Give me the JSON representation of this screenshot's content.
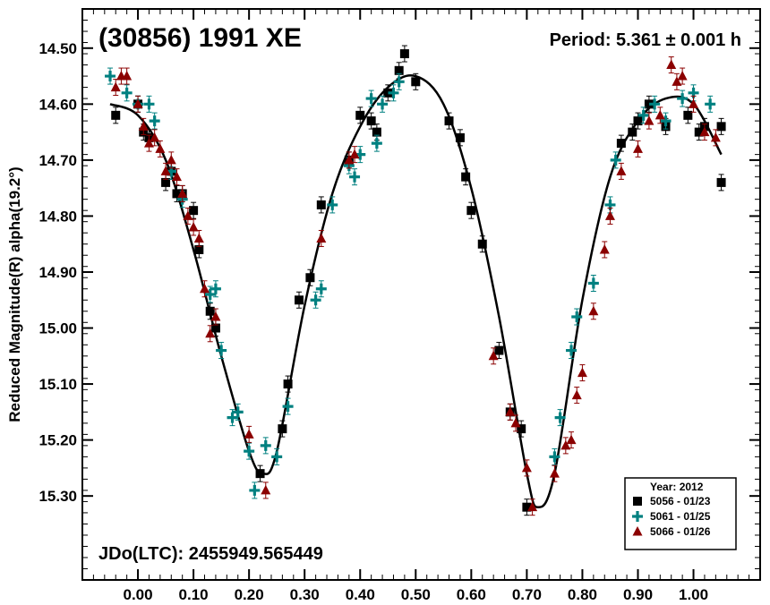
{
  "chart_data": {
    "type": "scatter",
    "title": "(30856) 1991 XE",
    "period_text": "Period: 5.361 ± 0.001 h",
    "jdo_text": "JDo(LTC): 2455949.565449",
    "ylabel": "Reduced Magnitude(R) alpha(19.2°)",
    "xlabel": "",
    "xlim": [
      -0.1,
      1.12
    ],
    "ylim": [
      14.43,
      15.45
    ],
    "y_inverted": true,
    "x_ticks": [
      0.0,
      0.1,
      0.2,
      0.3,
      0.4,
      0.5,
      0.6,
      0.7,
      0.8,
      0.9,
      1.0
    ],
    "x_tick_labels": [
      "0.00",
      "0.10",
      "0.20",
      "0.30",
      "0.40",
      "0.50",
      "0.60",
      "0.70",
      "0.80",
      "0.90",
      "1.00"
    ],
    "y_ticks": [
      14.5,
      14.6,
      14.7,
      14.8,
      14.9,
      15.0,
      15.1,
      15.2,
      15.3
    ],
    "y_tick_labels": [
      "14.50",
      "14.60",
      "14.70",
      "14.80",
      "14.90",
      "15.00",
      "15.10",
      "15.20",
      "15.30"
    ],
    "legend": {
      "title": "Year: 2012",
      "placement": "bottom-right",
      "entries": [
        {
          "label": "5056 - 01/23",
          "marker": "square",
          "color": "#000000"
        },
        {
          "label": "5061 - 01/25",
          "marker": "plus",
          "color": "#008080"
        },
        {
          "label": "5066 - 01/26",
          "marker": "triangle",
          "color": "#8b0000"
        }
      ]
    },
    "fit_curve": {
      "name": "",
      "x": [
        -0.05,
        0.0,
        0.05,
        0.1,
        0.15,
        0.2,
        0.225,
        0.25,
        0.3,
        0.35,
        0.4,
        0.45,
        0.5,
        0.55,
        0.6,
        0.65,
        0.7,
        0.72,
        0.75,
        0.8,
        0.85,
        0.9,
        0.95,
        1.0,
        1.05
      ],
      "y": [
        14.6,
        14.62,
        14.7,
        14.86,
        15.05,
        15.22,
        15.26,
        15.22,
        14.96,
        14.76,
        14.64,
        14.57,
        14.55,
        14.6,
        14.75,
        14.98,
        15.26,
        15.32,
        15.26,
        14.95,
        14.73,
        14.63,
        14.59,
        14.6,
        14.69
      ]
    },
    "series": [
      {
        "name": "5056 - 01/23",
        "marker": "square",
        "color": "#000000",
        "x": [
          -0.04,
          0.0,
          0.01,
          0.02,
          0.05,
          0.06,
          0.07,
          0.08,
          0.1,
          0.11,
          0.13,
          0.14,
          0.22,
          0.26,
          0.27,
          0.29,
          0.31,
          0.33,
          0.38,
          0.4,
          0.42,
          0.43,
          0.45,
          0.47,
          0.48,
          0.5,
          0.56,
          0.58,
          0.59,
          0.6,
          0.62,
          0.65,
          0.67,
          0.69,
          0.7,
          0.87,
          0.89,
          0.9,
          0.92,
          0.95,
          0.99,
          1.01,
          1.02,
          1.05,
          1.05
        ],
        "y": [
          14.62,
          14.6,
          14.65,
          14.66,
          14.74,
          14.72,
          14.76,
          14.76,
          14.79,
          14.86,
          14.97,
          15.0,
          15.26,
          15.18,
          15.1,
          14.95,
          14.91,
          14.78,
          14.7,
          14.62,
          14.63,
          14.65,
          14.58,
          14.54,
          14.51,
          14.56,
          14.63,
          14.66,
          14.73,
          14.79,
          14.85,
          15.04,
          15.15,
          15.18,
          15.32,
          14.67,
          14.65,
          14.63,
          14.6,
          14.64,
          14.62,
          14.65,
          14.64,
          14.64,
          14.74
        ]
      },
      {
        "name": "5061 - 01/25",
        "marker": "plus",
        "color": "#008080",
        "x": [
          -0.05,
          -0.02,
          0.0,
          0.02,
          0.03,
          0.06,
          0.08,
          0.13,
          0.14,
          0.15,
          0.17,
          0.18,
          0.2,
          0.21,
          0.23,
          0.25,
          0.27,
          0.32,
          0.33,
          0.35,
          0.38,
          0.39,
          0.4,
          0.42,
          0.43,
          0.44,
          0.46,
          0.47,
          0.75,
          0.76,
          0.78,
          0.79,
          0.82,
          0.85,
          0.86,
          0.91,
          0.93,
          0.95,
          0.98,
          1.0,
          1.03
        ],
        "y": [
          14.55,
          14.58,
          14.6,
          14.6,
          14.63,
          14.72,
          14.77,
          14.94,
          14.93,
          15.04,
          15.16,
          15.15,
          15.22,
          15.29,
          15.21,
          15.23,
          15.14,
          14.95,
          14.93,
          14.78,
          14.71,
          14.73,
          14.69,
          14.59,
          14.67,
          14.6,
          14.58,
          14.56,
          15.23,
          15.16,
          15.04,
          14.98,
          14.92,
          14.78,
          14.7,
          14.62,
          14.6,
          14.63,
          14.59,
          14.58,
          14.6
        ]
      },
      {
        "name": "5066 - 01/26",
        "marker": "triangle",
        "color": "#8b0000",
        "x": [
          -0.04,
          -0.03,
          -0.02,
          0.0,
          0.01,
          0.02,
          0.03,
          0.04,
          0.05,
          0.06,
          0.07,
          0.08,
          0.09,
          0.1,
          0.11,
          0.12,
          0.13,
          0.14,
          0.2,
          0.23,
          0.33,
          0.38,
          0.39,
          0.64,
          0.67,
          0.68,
          0.7,
          0.71,
          0.75,
          0.77,
          0.78,
          0.79,
          0.8,
          0.82,
          0.84,
          0.85,
          0.87,
          0.9,
          0.92,
          0.94,
          0.96,
          0.97,
          0.98,
          1.0,
          1.02,
          1.04
        ],
        "y": [
          14.57,
          14.55,
          14.55,
          14.6,
          14.64,
          14.67,
          14.66,
          14.68,
          14.72,
          14.7,
          14.73,
          14.76,
          14.8,
          14.82,
          14.84,
          14.93,
          15.01,
          14.98,
          15.19,
          15.29,
          14.84,
          14.7,
          14.69,
          15.05,
          15.15,
          15.17,
          15.25,
          15.32,
          15.26,
          15.21,
          15.2,
          15.12,
          15.08,
          14.97,
          14.86,
          14.8,
          14.72,
          14.68,
          14.63,
          14.62,
          14.53,
          14.56,
          14.55,
          14.6,
          14.65,
          14.66
        ]
      }
    ]
  },
  "colors": {
    "background": "#ffffff",
    "axis": "#000000",
    "fit_curve": "#000000"
  }
}
